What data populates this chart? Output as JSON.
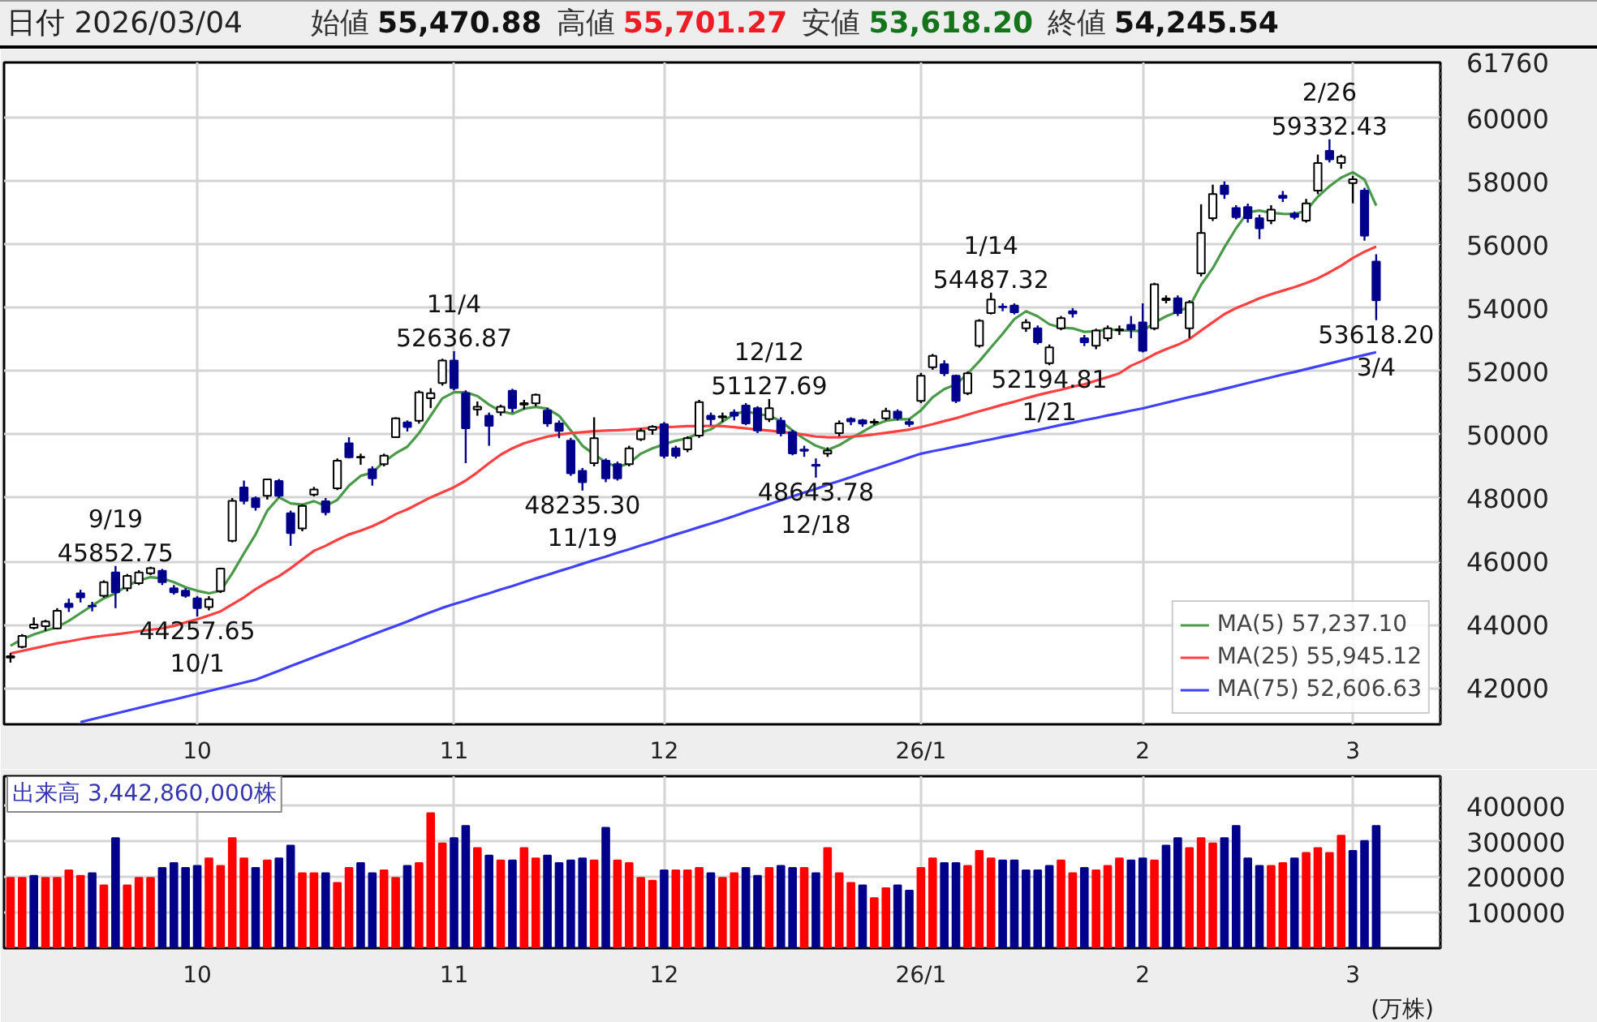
{
  "chart_data": [
    {
      "type": "candlestick",
      "title": "日付 2026/03/04",
      "subtitle": "始値 55,470.88 高値 55,701.27 安値 53,618.20 終値 54,245.54",
      "categories": [
        null,
        null,
        null,
        null,
        null,
        null,
        null,
        null,
        null,
        null,
        null,
        null,
        null,
        null,
        null,
        null,
        "10",
        null,
        null,
        null,
        null,
        null,
        null,
        null,
        null,
        null,
        null,
        null,
        null,
        null,
        null,
        null,
        null,
        null,
        null,
        null,
        null,
        null,
        "11",
        null,
        null,
        null,
        null,
        null,
        null,
        null,
        null,
        null,
        null,
        null,
        null,
        null,
        null,
        null,
        null,
        null,
        "12",
        null,
        null,
        null,
        null,
        null,
        null,
        null,
        null,
        null,
        null,
        null,
        null,
        null,
        null,
        null,
        null,
        null,
        null,
        null,
        null,
        null,
        "26/1",
        null,
        null,
        null,
        null,
        null,
        null,
        null,
        null,
        null,
        null,
        null,
        null,
        null,
        null,
        null,
        null,
        null,
        null,
        "2",
        null,
        null,
        null,
        null,
        null,
        null,
        null,
        null,
        null,
        null,
        null,
        null,
        null,
        null,
        null,
        null,
        null,
        "3",
        null,
        null
      ],
      "ohlc": [
        [
          42960,
          43100,
          42800,
          43000
        ],
        [
          43300,
          43700,
          43250,
          43640
        ],
        [
          43900,
          44230,
          43850,
          44000
        ],
        [
          43950,
          44150,
          43800,
          44100
        ],
        [
          43880,
          44520,
          43850,
          44440
        ],
        [
          44660,
          44820,
          44400,
          44550
        ],
        [
          44990,
          45100,
          44700,
          44860
        ],
        [
          44600,
          44720,
          44420,
          44580
        ],
        [
          44910,
          45400,
          44850,
          45340
        ],
        [
          45650,
          45852.75,
          44520,
          45020
        ],
        [
          45150,
          45600,
          45050,
          45540
        ],
        [
          45310,
          45720,
          45250,
          45650
        ],
        [
          45620,
          45830,
          45560,
          45780
        ],
        [
          45700,
          45760,
          45250,
          45340
        ],
        [
          45150,
          45250,
          44950,
          45020
        ],
        [
          45070,
          45150,
          44850,
          44910
        ],
        [
          44830,
          44900,
          44257.65,
          44520
        ],
        [
          44550,
          44900,
          44450,
          44800
        ],
        [
          45060,
          45800,
          45000,
          45770
        ],
        [
          46650,
          48000,
          46600,
          47910
        ],
        [
          48330,
          48550,
          47800,
          47910
        ],
        [
          47990,
          48050,
          47600,
          47710
        ],
        [
          48070,
          48600,
          47950,
          48590
        ],
        [
          48540,
          48600,
          48000,
          48070
        ],
        [
          47520,
          47600,
          46490,
          46890
        ],
        [
          47040,
          47800,
          46950,
          47750
        ],
        [
          48110,
          48350,
          48050,
          48270
        ],
        [
          47900,
          48000,
          47450,
          47550
        ],
        [
          48310,
          49250,
          48250,
          49180
        ],
        [
          49730,
          49920,
          49250,
          49290
        ],
        [
          49280,
          49400,
          49050,
          49300
        ],
        [
          48910,
          49000,
          48390,
          48620
        ],
        [
          49070,
          49400,
          49000,
          49340
        ],
        [
          49920,
          50550,
          49900,
          50520
        ],
        [
          50390,
          50450,
          50100,
          50240
        ],
        [
          50440,
          51400,
          50350,
          51340
        ],
        [
          51150,
          51470,
          50840,
          51310
        ],
        [
          51630,
          52400,
          51550,
          52340
        ],
        [
          52340,
          52636.87,
          51400,
          51470
        ],
        [
          51310,
          51400,
          49100,
          50200
        ],
        [
          50800,
          51050,
          50600,
          50880
        ],
        [
          50600,
          50700,
          49650,
          50280
        ],
        [
          50710,
          50950,
          50600,
          50880
        ],
        [
          51390,
          51450,
          50700,
          50840
        ],
        [
          50950,
          51100,
          50800,
          51000
        ],
        [
          50990,
          51300,
          50900,
          51260
        ],
        [
          50760,
          50850,
          50250,
          50360
        ],
        [
          50360,
          50450,
          49890,
          50120
        ],
        [
          49810,
          49900,
          48700,
          48780
        ],
        [
          48860,
          48950,
          48235.3,
          48500
        ],
        [
          49100,
          50550,
          49000,
          49890
        ],
        [
          49180,
          49250,
          48500,
          48620
        ],
        [
          49070,
          49150,
          48550,
          48620
        ],
        [
          49070,
          49650,
          49000,
          49570
        ],
        [
          49860,
          50200,
          49800,
          50120
        ],
        [
          50150,
          50300,
          50000,
          50250
        ],
        [
          50330,
          50400,
          49250,
          49330
        ],
        [
          49570,
          49650,
          49250,
          49330
        ],
        [
          49540,
          49950,
          49450,
          49890
        ],
        [
          49970,
          51100,
          49900,
          51030
        ],
        [
          50600,
          50700,
          50300,
          50490
        ],
        [
          50550,
          50700,
          50400,
          50580
        ],
        [
          50700,
          50800,
          50450,
          50600
        ],
        [
          50920,
          51000,
          50300,
          50360
        ],
        [
          50840,
          50900,
          50050,
          50130
        ],
        [
          50490,
          51127.69,
          50400,
          50840
        ],
        [
          50440,
          50550,
          49950,
          50050
        ],
        [
          50080,
          50150,
          49350,
          49410
        ],
        [
          49530,
          49650,
          49300,
          49490
        ],
        [
          49050,
          49250,
          48643.78,
          49020
        ],
        [
          49400,
          49600,
          49300,
          49500
        ],
        [
          50050,
          50450,
          49950,
          50360
        ],
        [
          50500,
          50550,
          50300,
          50420
        ],
        [
          50450,
          50500,
          50250,
          50350
        ],
        [
          50380,
          50500,
          50300,
          50410
        ],
        [
          50520,
          50850,
          50450,
          50750
        ],
        [
          50730,
          50800,
          50450,
          50530
        ],
        [
          50400,
          50500,
          50250,
          50340
        ],
        [
          51070,
          51950,
          51000,
          51860
        ],
        [
          52130,
          52550,
          52050,
          52490
        ],
        [
          52230,
          52350,
          51850,
          51940
        ],
        [
          51860,
          51900,
          51000,
          51070
        ],
        [
          51310,
          52000,
          51250,
          51940
        ],
        [
          52810,
          53650,
          52750,
          53600
        ],
        [
          53840,
          54487.32,
          53800,
          54270
        ],
        [
          54050,
          54150,
          53900,
          54030
        ],
        [
          54080,
          54150,
          53800,
          53870
        ],
        [
          53360,
          53650,
          53250,
          53550
        ],
        [
          53360,
          53450,
          52850,
          52920
        ],
        [
          52260,
          52850,
          52194.81,
          52760
        ],
        [
          53360,
          53750,
          53300,
          53680
        ],
        [
          53900,
          54000,
          53700,
          53830
        ],
        [
          53050,
          53150,
          52800,
          52920
        ],
        [
          52810,
          53350,
          52700,
          53290
        ],
        [
          53050,
          53450,
          52950,
          53360
        ],
        [
          53300,
          53450,
          53150,
          53330
        ],
        [
          53470,
          53750,
          53050,
          53320
        ],
        [
          53550,
          54150,
          52600,
          52650
        ],
        [
          53360,
          54800,
          53300,
          54750
        ],
        [
          54250,
          54400,
          54150,
          54300
        ],
        [
          54310,
          54400,
          53750,
          53840
        ],
        [
          53360,
          54250,
          53050,
          54180
        ],
        [
          55100,
          57280,
          55000,
          56370
        ],
        [
          56840,
          57900,
          56750,
          57600
        ],
        [
          57870,
          58000,
          57450,
          57600
        ],
        [
          57160,
          57250,
          56800,
          56870
        ],
        [
          57190,
          57300,
          56700,
          56840
        ],
        [
          56840,
          56950,
          56180,
          56520
        ],
        [
          56760,
          57250,
          56650,
          57110
        ],
        [
          57550,
          57700,
          57350,
          57480
        ],
        [
          56980,
          57050,
          56800,
          56880
        ],
        [
          56760,
          57450,
          56700,
          57310
        ],
        [
          57710,
          58850,
          57600,
          58580
        ],
        [
          58970,
          59332.43,
          58600,
          58700
        ],
        [
          58580,
          58850,
          58400,
          58780
        ],
        [
          57950,
          58180,
          57310,
          58070
        ],
        [
          57710,
          57800,
          56130,
          56290
        ],
        [
          55470.88,
          55701.27,
          53618.2,
          54245.54
        ]
      ],
      "colors": [
        "#ffffff",
        "#ffffff",
        "#ffffff",
        "#ffffff",
        "#ffffff",
        "#00008b",
        "#00008b",
        "#00008b",
        "#ffffff",
        "#00008b",
        "#ffffff",
        "#ffffff",
        "#ffffff",
        "#00008b",
        "#00008b",
        "#00008b",
        "#00008b",
        "#ffffff",
        "#ffffff",
        "#ffffff",
        "#00008b",
        "#00008b",
        "#ffffff",
        "#00008b",
        "#00008b",
        "#ffffff",
        "#ffffff",
        "#00008b",
        "#ffffff",
        "#00008b",
        "#ffffff",
        "#00008b",
        "#ffffff",
        "#ffffff",
        "#00008b",
        "#ffffff",
        "#ffffff",
        "#ffffff",
        "#00008b",
        "#00008b",
        "#ffffff",
        "#00008b",
        "#ffffff",
        "#00008b",
        "#ffffff",
        "#ffffff",
        "#00008b",
        "#00008b",
        "#00008b",
        "#00008b",
        "#ffffff",
        "#00008b",
        "#00008b",
        "#ffffff",
        "#ffffff",
        "#ffffff",
        "#00008b",
        "#00008b",
        "#ffffff",
        "#ffffff",
        "#00008b",
        "#ffffff",
        "#00008b",
        "#00008b",
        "#00008b",
        "#ffffff",
        "#00008b",
        "#00008b",
        "#00008b",
        "#00008b",
        "#ffffff",
        "#ffffff",
        "#00008b",
        "#00008b",
        "#ffffff",
        "#ffffff",
        "#00008b",
        "#00008b",
        "#ffffff",
        "#ffffff",
        "#00008b",
        "#00008b",
        "#ffffff",
        "#ffffff",
        "#ffffff",
        "#00008b",
        "#00008b",
        "#ffffff",
        "#00008b",
        "#ffffff",
        "#ffffff",
        "#00008b",
        "#00008b",
        "#ffffff",
        "#ffffff",
        "#ffffff",
        "#00008b",
        "#00008b",
        "#ffffff",
        "#ffffff",
        "#00008b",
        "#ffffff",
        "#ffffff",
        "#ffffff",
        "#00008b",
        "#00008b",
        "#00008b",
        "#00008b",
        "#ffffff",
        "#00008b",
        "#00008b",
        "#ffffff",
        "#ffffff",
        "#00008b",
        "#ffffff",
        "#ffffff",
        "#00008b",
        "#00008b"
      ],
      "series": [
        {
          "name": "MA(5) 57,237.10",
          "type": "line",
          "color": "#4a9a4a",
          "values": [
            43330,
            43540,
            43690,
            43810,
            43920,
            44120,
            44360,
            44600,
            44830,
            44990,
            45230,
            45390,
            45500,
            45460,
            45340,
            45180,
            45070,
            44990,
            45070,
            45620,
            46250,
            46850,
            47600,
            48020,
            47830,
            47790,
            47900,
            47750,
            47940,
            48390,
            48700,
            48800,
            49150,
            49410,
            49620,
            50050,
            50600,
            51150,
            51340,
            51340,
            51220,
            50950,
            50740,
            50660,
            50820,
            50880,
            50820,
            50600,
            50130,
            49650,
            49380,
            49130,
            48970,
            49100,
            49400,
            49570,
            49700,
            49810,
            49890,
            50050,
            50170,
            50410,
            50650,
            50740,
            50650,
            50600,
            50430,
            50130,
            49870,
            49650,
            49520,
            49670,
            49890,
            50090,
            50300,
            50440,
            50490,
            50490,
            50770,
            51180,
            51440,
            51590,
            51930,
            52320,
            52760,
            53190,
            53650,
            53900,
            53740,
            53490,
            53380,
            53360,
            53250,
            53270,
            53330,
            53300,
            53290,
            53270,
            53540,
            53740,
            53890,
            54040,
            54740,
            55260,
            55920,
            56520,
            57030,
            57080,
            57010,
            56980,
            56970,
            57080,
            57520,
            57850,
            58120,
            58290,
            58060,
            57237.1
          ]
        },
        {
          "name": "MA(25) 55,945.12",
          "type": "line",
          "color": "#ff4040",
          "values": [
            43090,
            43170,
            43250,
            43330,
            43410,
            43470,
            43540,
            43600,
            43650,
            43690,
            43740,
            43790,
            43840,
            43880,
            43960,
            44070,
            44170,
            44290,
            44420,
            44640,
            44860,
            45120,
            45340,
            45530,
            45780,
            46060,
            46330,
            46490,
            46680,
            46850,
            46970,
            47110,
            47280,
            47490,
            47640,
            47830,
            48020,
            48180,
            48340,
            48550,
            48810,
            49100,
            49370,
            49570,
            49730,
            49840,
            49940,
            50000,
            50050,
            50080,
            50110,
            50130,
            50140,
            50160,
            50190,
            50220,
            50240,
            50250,
            50270,
            50270,
            50280,
            50270,
            50240,
            50200,
            50160,
            50130,
            50090,
            50050,
            50000,
            49940,
            49920,
            49920,
            49940,
            49970,
            50010,
            50060,
            50110,
            50160,
            50240,
            50330,
            50430,
            50520,
            50630,
            50740,
            50840,
            50950,
            51040,
            51150,
            51250,
            51340,
            51420,
            51520,
            51590,
            51710,
            51820,
            51940,
            52180,
            52340,
            52540,
            52700,
            52840,
            53020,
            53290,
            53550,
            53810,
            54000,
            54150,
            54310,
            54440,
            54550,
            54660,
            54790,
            54940,
            55130,
            55340,
            55580,
            55780,
            55945.12
          ]
        },
        {
          "name": "MA(75) 52,606.63",
          "type": "line",
          "color": "#4040ff",
          "values": [
            null,
            null,
            null,
            null,
            null,
            null,
            40920,
            41010,
            41100,
            41190,
            41280,
            41370,
            41460,
            41550,
            41630,
            41720,
            41810,
            41900,
            41990,
            42080,
            42170,
            42260,
            42400,
            42540,
            42690,
            42830,
            42970,
            43110,
            43250,
            43390,
            43540,
            43680,
            43820,
            43960,
            44100,
            44250,
            44390,
            44530,
            44650,
            44760,
            44880,
            44990,
            45110,
            45220,
            45340,
            45460,
            45570,
            45690,
            45800,
            45920,
            46040,
            46150,
            46270,
            46380,
            46500,
            46610,
            46730,
            46850,
            46960,
            47080,
            47190,
            47310,
            47430,
            47560,
            47680,
            47800,
            47930,
            48050,
            48170,
            48290,
            48420,
            48540,
            48660,
            48790,
            48910,
            49030,
            49150,
            49280,
            49400,
            49480,
            49550,
            49630,
            49700,
            49780,
            49850,
            49930,
            50000,
            50080,
            50150,
            50230,
            50310,
            50380,
            50460,
            50530,
            50610,
            50680,
            50760,
            50830,
            50920,
            51010,
            51100,
            51190,
            51270,
            51360,
            51450,
            51540,
            51630,
            51720,
            51810,
            51900,
            51980,
            52070,
            52160,
            52250,
            52340,
            52430,
            52520,
            52606.63
          ]
        }
      ],
      "ylim": [
        40850,
        61760
      ],
      "yticks": [
        42000,
        44000,
        46000,
        48000,
        50000,
        52000,
        54000,
        56000,
        58000,
        60000,
        61760
      ],
      "grid": true,
      "legend": "bottom right",
      "annotations": [
        {
          "text": "9/19\n45852.75",
          "y": 45852.75
        },
        {
          "text": "44257.65\n10/1",
          "y": 44257.65
        },
        {
          "text": "11/4\n52636.87",
          "y": 52636.87
        },
        {
          "text": "48235.30\n11/19",
          "y": 48235.3
        },
        {
          "text": "12/12\n51127.69",
          "y": 51127.69
        },
        {
          "text": "48643.78\n12/18",
          "y": 48643.78
        },
        {
          "text": "1/14\n54487.32",
          "y": 54487.32
        },
        {
          "text": "52194.81\n1/21",
          "y": 52194.81
        },
        {
          "text": "2/26\n59332.43",
          "y": 59332.43
        },
        {
          "text": "53618.20\n3/4",
          "y": 53618.2
        }
      ]
    },
    {
      "type": "bar",
      "title": "出来高 3,442,860,000株",
      "ylabel": "(万株)",
      "categories": [
        null,
        null,
        null,
        null,
        null,
        null,
        null,
        null,
        null,
        null,
        null,
        null,
        null,
        null,
        null,
        null,
        "10",
        null,
        null,
        null,
        null,
        null,
        null,
        null,
        null,
        null,
        null,
        null,
        null,
        null,
        null,
        null,
        null,
        null,
        null,
        null,
        null,
        null,
        "11",
        null,
        null,
        null,
        null,
        null,
        null,
        null,
        null,
        null,
        null,
        null,
        null,
        null,
        null,
        null,
        null,
        null,
        "12",
        null,
        null,
        null,
        null,
        null,
        null,
        null,
        null,
        null,
        null,
        null,
        null,
        null,
        null,
        null,
        null,
        null,
        null,
        null,
        null,
        null,
        "26/1",
        null,
        null,
        null,
        null,
        null,
        null,
        null,
        null,
        null,
        null,
        null,
        null,
        null,
        null,
        null,
        null,
        null,
        null,
        "2",
        null,
        null,
        null,
        null,
        null,
        null,
        null,
        null,
        null,
        null,
        null,
        null,
        null,
        null,
        null,
        null,
        null,
        "3",
        null,
        null
      ],
      "values": [
        198000,
        198000,
        204000,
        198000,
        198000,
        219000,
        204000,
        211000,
        177000,
        310000,
        177000,
        198000,
        198000,
        226000,
        240000,
        226000,
        232000,
        253000,
        232000,
        310000,
        253000,
        226000,
        247000,
        253000,
        289000,
        211000,
        211000,
        211000,
        184000,
        226000,
        240000,
        211000,
        219000,
        198000,
        232000,
        240000,
        380000,
        295000,
        310000,
        344000,
        282000,
        261000,
        247000,
        247000,
        282000,
        253000,
        261000,
        240000,
        247000,
        253000,
        247000,
        339000,
        247000,
        240000,
        198000,
        190000,
        219000,
        219000,
        219000,
        226000,
        211000,
        198000,
        211000,
        226000,
        204000,
        226000,
        232000,
        226000,
        226000,
        211000,
        282000,
        211000,
        184000,
        177000,
        141000,
        169000,
        177000,
        162000,
        226000,
        253000,
        240000,
        240000,
        232000,
        274000,
        253000,
        247000,
        247000,
        219000,
        219000,
        232000,
        247000,
        211000,
        226000,
        219000,
        232000,
        253000,
        247000,
        253000,
        247000,
        289000,
        310000,
        282000,
        310000,
        295000,
        310000,
        344000,
        253000,
        232000,
        232000,
        240000,
        253000,
        268000,
        282000,
        268000,
        317000,
        274000,
        302000,
        344286
      ],
      "colors": [
        "#ff0000",
        "#ff0000",
        "#00008b",
        "#ff0000",
        "#ff0000",
        "#ff0000",
        "#ff0000",
        "#00008b",
        "#ff0000",
        "#00008b",
        "#ff0000",
        "#ff0000",
        "#ff0000",
        "#00008b",
        "#00008b",
        "#00008b",
        "#00008b",
        "#ff0000",
        "#ff0000",
        "#ff0000",
        "#ff0000",
        "#00008b",
        "#ff0000",
        "#00008b",
        "#00008b",
        "#ff0000",
        "#ff0000",
        "#00008b",
        "#ff0000",
        "#ff0000",
        "#00008b",
        "#00008b",
        "#ff0000",
        "#ff0000",
        "#00008b",
        "#ff0000",
        "#ff0000",
        "#ff0000",
        "#00008b",
        "#00008b",
        "#ff0000",
        "#00008b",
        "#ff0000",
        "#00008b",
        "#ff0000",
        "#ff0000",
        "#00008b",
        "#00008b",
        "#00008b",
        "#00008b",
        "#ff0000",
        "#00008b",
        "#ff0000",
        "#ff0000",
        "#ff0000",
        "#ff0000",
        "#00008b",
        "#ff0000",
        "#ff0000",
        "#ff0000",
        "#00008b",
        "#ff0000",
        "#ff0000",
        "#00008b",
        "#00008b",
        "#ff0000",
        "#00008b",
        "#00008b",
        "#ff0000",
        "#00008b",
        "#ff0000",
        "#ff0000",
        "#ff0000",
        "#00008b",
        "#ff0000",
        "#ff0000",
        "#00008b",
        "#00008b",
        "#ff0000",
        "#ff0000",
        "#00008b",
        "#00008b",
        "#ff0000",
        "#ff0000",
        "#ff0000",
        "#00008b",
        "#00008b",
        "#00008b",
        "#00008b",
        "#00008b",
        "#ff0000",
        "#ff0000",
        "#00008b",
        "#ff0000",
        "#ff0000",
        "#ff0000",
        "#00008b",
        "#00008b",
        "#ff0000",
        "#00008b",
        "#00008b",
        "#ff0000",
        "#ff0000",
        "#ff0000",
        "#00008b",
        "#00008b",
        "#00008b",
        "#00008b",
        "#ff0000",
        "#ff0000",
        "#00008b",
        "#ff0000",
        "#ff0000",
        "#ff0000",
        "#ff0000",
        "#00008b",
        "#00008b",
        "#00008b"
      ],
      "ylim": [
        0,
        484000
      ],
      "yticks": [
        100000,
        200000,
        300000,
        400000
      ],
      "grid": true
    }
  ]
}
